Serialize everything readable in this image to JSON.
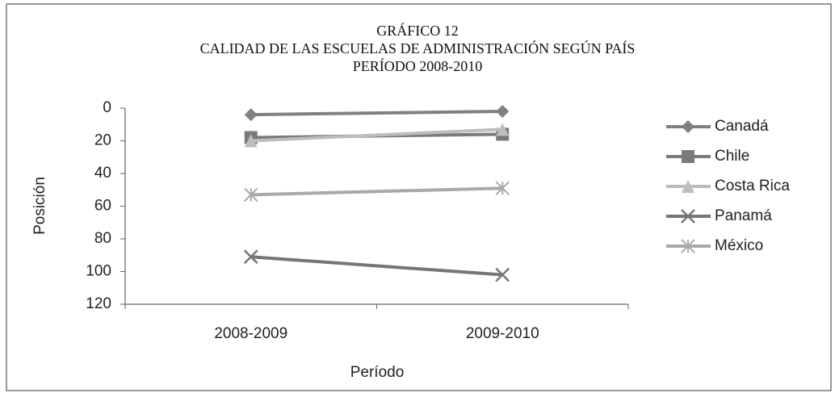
{
  "chart_data": {
    "type": "line",
    "title": "GRÁFICO 12",
    "subtitle": [
      "CALIDAD DE LAS ESCUELAS DE ADMINISTRACIÓN SEGÚN PAÍS",
      "PERÍODO 2008-2010"
    ],
    "x_label": "Período",
    "y_label": "Posición",
    "categories": [
      "2008-2009",
      "2009-2010"
    ],
    "series": [
      {
        "name": "Canadá",
        "color": "#808080",
        "marker": "diamond",
        "values": [
          4,
          2
        ]
      },
      {
        "name": "Chile",
        "color": "#7a7a7a",
        "marker": "square",
        "values": [
          18,
          16
        ]
      },
      {
        "name": "Costa Rica",
        "color": "#bdbdbd",
        "marker": "triangle",
        "values": [
          20,
          13
        ]
      },
      {
        "name": "Panamá",
        "color": "#767676",
        "marker": "x",
        "values": [
          91,
          102
        ]
      },
      {
        "name": "México",
        "color": "#a9a9a9",
        "marker": "star",
        "values": [
          53,
          49
        ]
      }
    ],
    "ylim": [
      0,
      120
    ],
    "yticks": [
      0,
      20,
      40,
      60,
      80,
      100,
      120
    ],
    "y_inverted": true,
    "legend": "right"
  }
}
